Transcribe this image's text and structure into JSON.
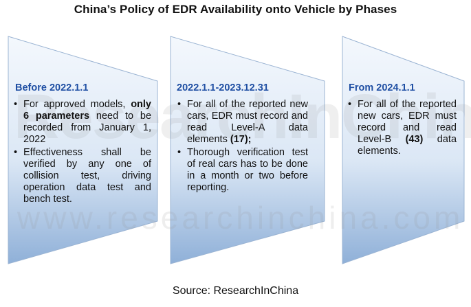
{
  "title": "China’s Policy of EDR Availability onto Vehicle by Phases",
  "phases": [
    {
      "heading": "Before 2022.1.1",
      "b1_pre": "For approved models,",
      "b1_bold": "only 6 parameters",
      "b1_post": "need to be recorded from January 1, 2022",
      "b2": "Effectiveness shall be verified by any one of collision test, driving operation data test and bench test."
    },
    {
      "heading": "2022.1.1-2023.12.31",
      "b1_pre": "For all of the reported new cars, EDR must record and read Level-A data elements",
      "b1_bold": "(17);",
      "b1_post": "",
      "b2": "Thorough verification test of real cars has to be done in a month or two before reporting."
    },
    {
      "heading": "From 2024.1.1",
      "b1_pre": "For all of the reported new cars, EDR must record and read Level-B",
      "b1_bold": "(43)",
      "b1_post": "data elements.",
      "b2": ""
    }
  ],
  "watermark": {
    "big": "ResearchInChina",
    "small": "www.researchinchina.com"
  },
  "source": "Source: ResearchInChina",
  "colors": {
    "heading": "#1f4fa3",
    "shape_light": "#eaf1fa",
    "shape_dark": "#8fb0d8",
    "shape_border": "#9bb4d3"
  }
}
